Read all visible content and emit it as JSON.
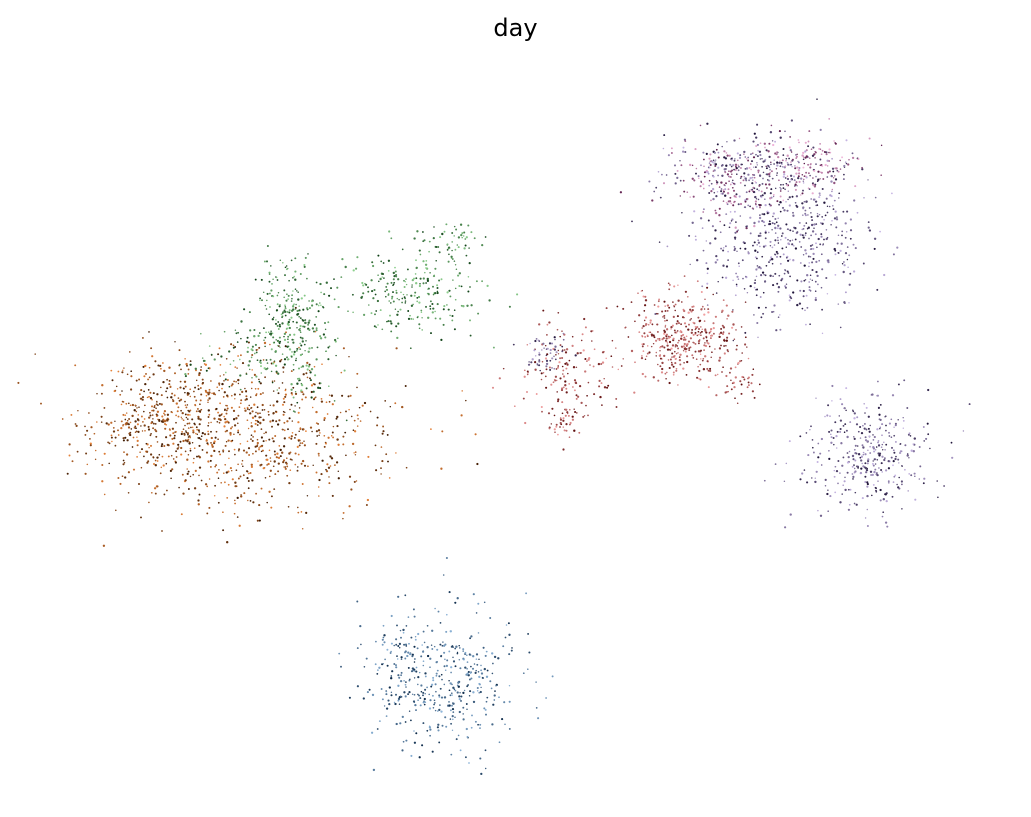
{
  "chart_data": {
    "type": "scatter",
    "title": "day",
    "xlabel": "",
    "ylabel": "",
    "axes_visible": false,
    "grid": false,
    "legend": "none",
    "xlim": [
      0,
      100
    ],
    "ylim": [
      0,
      100
    ],
    "series": [
      {
        "color_dark": "#3d1a02",
        "color_light": "#e8843a",
        "clusters": [
          {
            "cx": 20.5,
            "cy": 49.5,
            "sx": 7.5,
            "sy": 5.5,
            "n": 900
          },
          {
            "cx": 11.0,
            "cy": 51.0,
            "sx": 3.5,
            "sy": 3.5,
            "n": 220
          }
        ]
      },
      {
        "color_dark": "#0b3d12",
        "color_light": "#8fd18f",
        "clusters": [
          {
            "cx": 26.0,
            "cy": 64.0,
            "sx": 2.2,
            "sy": 4.5,
            "n": 320
          },
          {
            "cx": 39.0,
            "cy": 68.5,
            "sx": 3.5,
            "sy": 3.0,
            "n": 240
          },
          {
            "cx": 43.0,
            "cy": 75.5,
            "sx": 1.5,
            "sy": 1.8,
            "n": 50
          },
          {
            "cx": 20.0,
            "cy": 59.0,
            "sx": 3.0,
            "sy": 2.5,
            "n": 60
          }
        ]
      },
      {
        "color_dark": "#0a2746",
        "color_light": "#8fb6da",
        "clusters": [
          {
            "cx": 41.5,
            "cy": 13.5,
            "sx": 4.0,
            "sy": 4.5,
            "n": 420
          },
          {
            "cx": 38.0,
            "cy": 19.0,
            "sx": 1.2,
            "sy": 2.0,
            "n": 40
          }
        ]
      },
      {
        "color_dark": "#5b0a0a",
        "color_light": "#f2a0a0",
        "clusters": [
          {
            "cx": 67.5,
            "cy": 62.5,
            "sx": 2.8,
            "sy": 3.0,
            "n": 380
          },
          {
            "cx": 55.5,
            "cy": 57.5,
            "sx": 2.8,
            "sy": 3.5,
            "n": 160
          },
          {
            "cx": 55.0,
            "cy": 50.5,
            "sx": 1.2,
            "sy": 1.2,
            "n": 35
          },
          {
            "cx": 72.5,
            "cy": 56.0,
            "sx": 1.5,
            "sy": 1.5,
            "n": 45
          }
        ]
      },
      {
        "color_dark": "#1e1238",
        "color_light": "#c9b8e6",
        "clusters": [
          {
            "cx": 78.0,
            "cy": 76.0,
            "sx": 4.5,
            "sy": 5.5,
            "n": 560
          },
          {
            "cx": 75.0,
            "cy": 86.0,
            "sx": 5.0,
            "sy": 2.2,
            "n": 220
          },
          {
            "cx": 87.0,
            "cy": 46.0,
            "sx": 3.3,
            "sy": 4.0,
            "n": 360
          },
          {
            "cx": 52.5,
            "cy": 60.0,
            "sx": 1.3,
            "sy": 1.5,
            "n": 50
          }
        ]
      },
      {
        "color_dark": "#5a1a4a",
        "color_light": "#f2b8dc",
        "clusters": [
          {
            "cx": 72.5,
            "cy": 84.0,
            "sx": 3.5,
            "sy": 2.8,
            "n": 160
          },
          {
            "cx": 81.0,
            "cy": 87.0,
            "sx": 2.5,
            "sy": 2.0,
            "n": 110
          }
        ]
      }
    ]
  }
}
